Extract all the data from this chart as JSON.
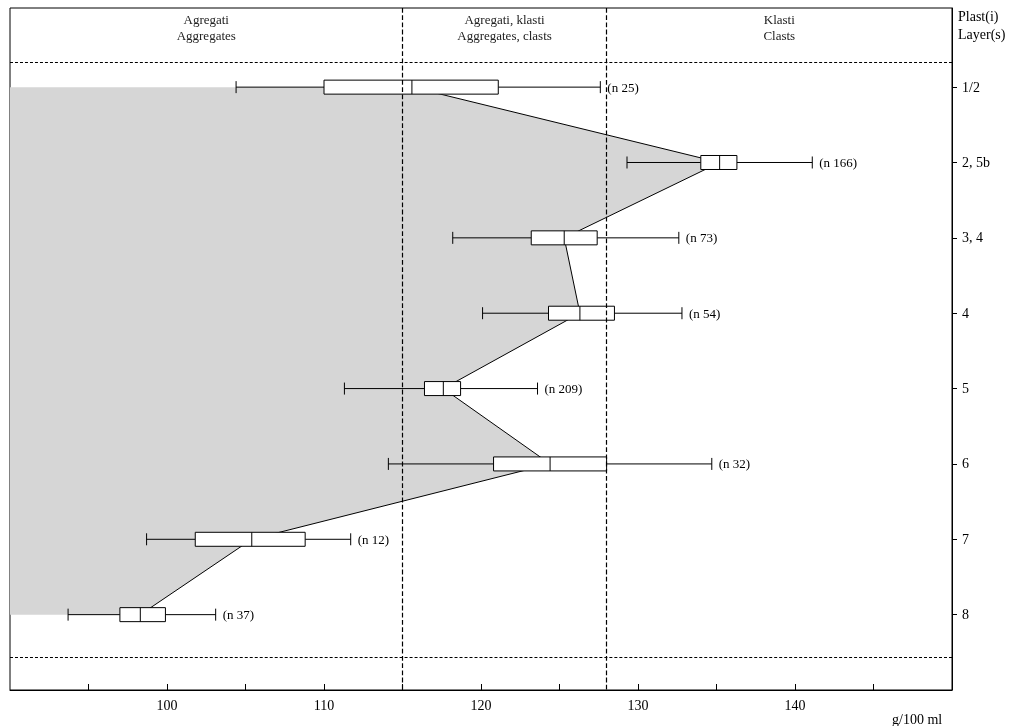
{
  "chart_data": {
    "type": "box",
    "orientation": "horizontal",
    "xlabel": "g/100 ml",
    "ylabel": "Plast(i)\nLayer(s)",
    "annotations": [
      "Agregati\nAggregates",
      "Agregati, klasti\nAggregates, clasts",
      "Klasti\nClasts"
    ],
    "categories": [
      "1/2",
      "2, 5b",
      "3, 4",
      "4",
      "5",
      "6",
      "7",
      "8"
    ],
    "xlim": [
      90,
      150
    ],
    "xticks": [
      {
        "value": 95,
        "label": null
      },
      100,
      {
        "value": 105,
        "label": null
      },
      110,
      {
        "value": 115,
        "label": null
      },
      120,
      {
        "value": 125,
        "label": null
      },
      130,
      {
        "value": 135,
        "label": null
      },
      140,
      {
        "value": 145,
        "label": null
      }
    ],
    "ref_lines": [
      {
        "axis": "x",
        "value": 115,
        "line_style": "dashed",
        "color": "#000000"
      },
      {
        "axis": "x",
        "value": 128,
        "line_style": "dashed",
        "color": "#000000"
      }
    ],
    "grid": false,
    "series": [
      {
        "type": "area",
        "color": "#d6d6d6",
        "values": [
          115.6,
          135.2,
          125.3,
          126.3,
          117.6,
          124.4,
          105.4,
          98.3
        ]
      },
      {
        "color": "#000000",
        "value_labels": [
          "(n 25)",
          "(n 166)",
          "(n 73)",
          "(n 54)",
          "(n 209)",
          "(n 32)",
          "(n 12)",
          "(n 37)"
        ],
        "boxes": [
          {
            "low": 104.4,
            "q1": 110,
            "median": 115.6,
            "q3": 121.1,
            "high": 127.6
          },
          {
            "low": 129.3,
            "q1": 134,
            "median": 135.2,
            "q3": 136.3,
            "high": 141.1
          },
          {
            "low": 118.2,
            "q1": 123.2,
            "median": 125.3,
            "q3": 127.4,
            "high": 132.6
          },
          {
            "low": 120.1,
            "q1": 124.3,
            "median": 126.3,
            "q3": 128.5,
            "high": 132.8
          },
          {
            "low": 111.3,
            "q1": 116.4,
            "median": 117.6,
            "q3": 118.7,
            "high": 123.6
          },
          {
            "low": 114.1,
            "q1": 120.8,
            "median": 124.4,
            "q3": 128,
            "high": 134.7
          },
          {
            "low": 98.7,
            "q1": 101.8,
            "median": 105.4,
            "q3": 108.8,
            "high": 111.7
          },
          {
            "low": 93.7,
            "q1": 97,
            "median": 98.3,
            "q3": 99.9,
            "high": 103.1
          }
        ]
      }
    ]
  }
}
